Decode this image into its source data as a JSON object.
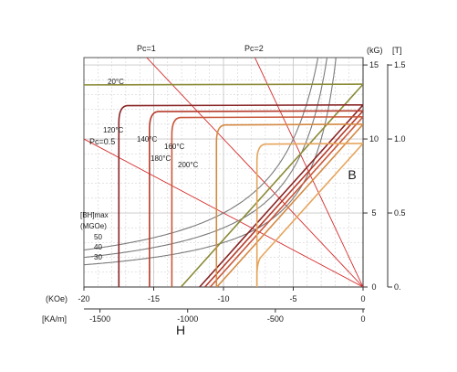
{
  "chart_data": {
    "type": "line",
    "title": "",
    "x_axes": {
      "koe": {
        "unit_label": "(KOe)",
        "ticks": [
          -20,
          -15,
          -10,
          -5,
          0
        ],
        "range": [
          -20,
          0
        ]
      },
      "kam": {
        "unit_label": "[KA/m]",
        "ticks": [
          -1500,
          -1000,
          -500,
          0
        ],
        "range": [
          -1591.5,
          0
        ]
      },
      "name": "H"
    },
    "y_axes": {
      "kg": {
        "unit_label": "(kG)",
        "ticks": [
          0,
          5,
          10,
          15
        ],
        "range": [
          0,
          15.5
        ]
      },
      "t": {
        "unit_label": "[T]",
        "ticks": [
          "0.",
          "0.5",
          "1.0",
          "1.5"
        ],
        "range": [
          0,
          1.55
        ]
      },
      "b_label": "B"
    },
    "grid": true,
    "temperature_labels": [
      "20°C",
      "120°C",
      "140°C",
      "160°C",
      "180°C",
      "200°C"
    ],
    "pc_labels": [
      "Pc=1",
      "Pc=2",
      "Pc=0.5"
    ],
    "bhmax_legend": {
      "title_line1": "[BH]max",
      "title_line2": "(MGOe)",
      "values": [
        "50",
        "40",
        "30"
      ]
    },
    "colors": {
      "20C": "#8a8a36",
      "120C": "#8a2525",
      "140C": "#b53a2a",
      "160C": "#c8573a",
      "180C": "#d48a44",
      "200C": "#e6a55c",
      "pc_line": "#d52b2b",
      "bhmax": "#7a7a7a",
      "grid": "#c9c9c9"
    },
    "series": [
      {
        "name": "20°C",
        "type": "demag",
        "Br": 13.7,
        "Hcj": -24,
        "color_key": "20C"
      },
      {
        "name": "120°C",
        "type": "demag",
        "Br": 12.3,
        "Hcj": -17.5,
        "color_key": "120C"
      },
      {
        "name": "140°C",
        "type": "demag",
        "Br": 11.9,
        "Hcj": -15.3,
        "color_key": "140C"
      },
      {
        "name": "160°C",
        "type": "demag",
        "Br": 11.5,
        "Hcj": -13.7,
        "color_key": "160C"
      },
      {
        "name": "180°C",
        "type": "demag",
        "Br": 11.0,
        "Hcj": -10.5,
        "color_key": "180C"
      },
      {
        "name": "200°C",
        "type": "demag",
        "Br": 9.7,
        "Hcj": -7.6,
        "color_key": "200C"
      }
    ],
    "pc_lines": [
      {
        "name": "Pc=1",
        "slope": 1.0
      },
      {
        "name": "Pc=2",
        "slope": 2.0
      },
      {
        "name": "Pc=0.5",
        "slope": 0.5
      }
    ],
    "bhmax_curves": [
      {
        "name": "50",
        "value": 50
      },
      {
        "name": "40",
        "value": 40
      },
      {
        "name": "30",
        "value": 30
      }
    ]
  }
}
